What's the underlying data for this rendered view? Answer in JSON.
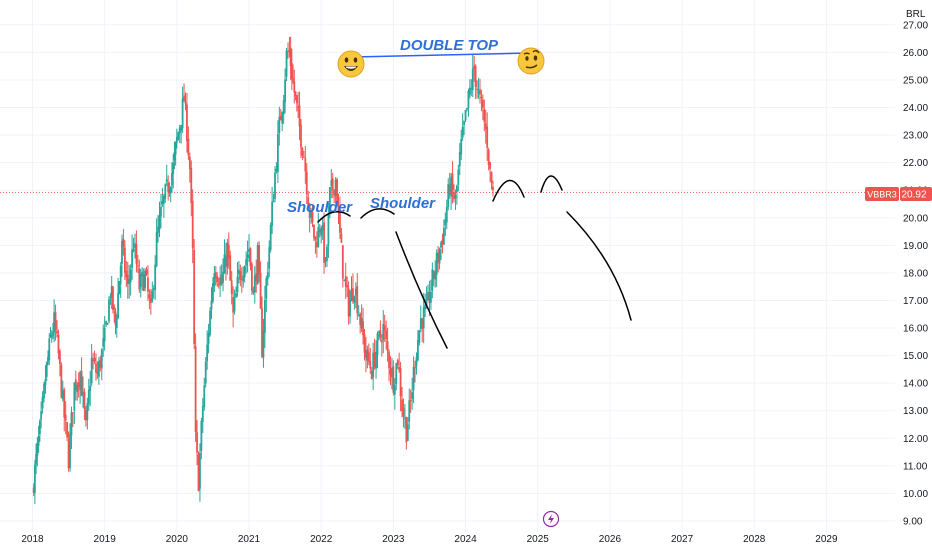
{
  "chart_data": {
    "type": "candlestick",
    "currency": "BRL",
    "symbol": "VBBR3",
    "last_price": "20.92",
    "x_ticks": [
      "2018",
      "2019",
      "2020",
      "2021",
      "2022",
      "2023",
      "2024",
      "2025",
      "2026",
      "2027",
      "2028",
      "2029"
    ],
    "y_ticks": [
      "9.00",
      "10.00",
      "11.00",
      "12.00",
      "13.00",
      "14.00",
      "15.00",
      "16.00",
      "17.00",
      "18.00",
      "19.00",
      "20.00",
      "21.00",
      "22.00",
      "23.00",
      "24.00",
      "25.00",
      "26.00",
      "27.00"
    ],
    "x_range": [
      2017.55,
      2029.95
    ],
    "y_range": [
      8.6,
      27.9
    ],
    "colors": {
      "up": "#26a69a",
      "down": "#ef5350",
      "annotation_line": "#2962ff",
      "annotation_text": "#2f6fd6",
      "drawing": "#000000",
      "price_line": "#ef5350"
    },
    "series": [
      [
        2018.0,
        10.1
      ],
      [
        2018.05,
        11.2
      ],
      [
        2018.12,
        12.6
      ],
      [
        2018.18,
        14.2
      ],
      [
        2018.25,
        15.6
      ],
      [
        2018.3,
        16.2
      ],
      [
        2018.36,
        15.0
      ],
      [
        2018.42,
        13.3
      ],
      [
        2018.5,
        11.3
      ],
      [
        2018.58,
        13.9
      ],
      [
        2018.66,
        14.4
      ],
      [
        2018.74,
        12.3
      ],
      [
        2018.82,
        14.8
      ],
      [
        2018.9,
        14.3
      ],
      [
        2019.0,
        15.6
      ],
      [
        2019.08,
        17.4
      ],
      [
        2019.15,
        16.1
      ],
      [
        2019.24,
        18.9
      ],
      [
        2019.32,
        17.4
      ],
      [
        2019.4,
        19.1
      ],
      [
        2019.48,
        17.5
      ],
      [
        2019.56,
        17.9
      ],
      [
        2019.64,
        16.5
      ],
      [
        2019.72,
        19.2
      ],
      [
        2019.8,
        20.4
      ],
      [
        2019.88,
        21.2
      ],
      [
        2019.95,
        21.8
      ],
      [
        2020.0,
        22.8
      ],
      [
        2020.06,
        23.7
      ],
      [
        2020.1,
        24.3
      ],
      [
        2020.14,
        23.2
      ],
      [
        2020.18,
        21.8
      ],
      [
        2020.22,
        18.6
      ],
      [
        2020.26,
        11.9
      ],
      [
        2020.3,
        10.5
      ],
      [
        2020.36,
        13.2
      ],
      [
        2020.44,
        16.0
      ],
      [
        2020.52,
        18.3
      ],
      [
        2020.62,
        17.6
      ],
      [
        2020.7,
        18.9
      ],
      [
        2020.78,
        16.4
      ],
      [
        2020.86,
        17.9
      ],
      [
        2020.94,
        18.4
      ],
      [
        2021.0,
        18.9
      ],
      [
        2021.06,
        17.2
      ],
      [
        2021.12,
        18.6
      ],
      [
        2021.18,
        15.3
      ],
      [
        2021.24,
        17.7
      ],
      [
        2021.3,
        19.6
      ],
      [
        2021.36,
        21.6
      ],
      [
        2021.42,
        23.3
      ],
      [
        2021.48,
        24.6
      ],
      [
        2021.52,
        25.9
      ],
      [
        2021.56,
        26.0
      ],
      [
        2021.61,
        24.9
      ],
      [
        2021.68,
        23.6
      ],
      [
        2021.76,
        22.3
      ],
      [
        2021.84,
        20.2
      ],
      [
        2021.92,
        19.1
      ],
      [
        2022.0,
        19.9
      ],
      [
        2022.06,
        18.1
      ],
      [
        2022.12,
        20.8
      ],
      [
        2022.2,
        21.4
      ],
      [
        2022.26,
        19.3
      ],
      [
        2022.32,
        17.6
      ],
      [
        2022.38,
        16.8
      ],
      [
        2022.46,
        17.6
      ],
      [
        2022.54,
        16.3
      ],
      [
        2022.62,
        15.0
      ],
      [
        2022.7,
        14.5
      ],
      [
        2022.78,
        15.4
      ],
      [
        2022.86,
        16.0
      ],
      [
        2022.94,
        14.8
      ],
      [
        2023.0,
        14.1
      ],
      [
        2023.06,
        14.9
      ],
      [
        2023.12,
        13.2
      ],
      [
        2023.18,
        12.3
      ],
      [
        2023.24,
        13.3
      ],
      [
        2023.3,
        14.9
      ],
      [
        2023.38,
        16.3
      ],
      [
        2023.46,
        16.6
      ],
      [
        2023.54,
        17.7
      ],
      [
        2023.62,
        18.6
      ],
      [
        2023.7,
        19.6
      ],
      [
        2023.78,
        21.2
      ],
      [
        2023.86,
        20.6
      ],
      [
        2023.94,
        22.6
      ],
      [
        2024.0,
        23.6
      ],
      [
        2024.06,
        24.6
      ],
      [
        2024.12,
        25.4
      ],
      [
        2024.18,
        24.4
      ],
      [
        2024.24,
        23.8
      ],
      [
        2024.3,
        22.8
      ],
      [
        2024.34,
        21.6
      ],
      [
        2024.38,
        20.92
      ]
    ],
    "annotations": [
      {
        "label": "DOUBLE TOP"
      },
      {
        "label": "Shoulder"
      },
      {
        "label": "Shoulder"
      }
    ]
  }
}
